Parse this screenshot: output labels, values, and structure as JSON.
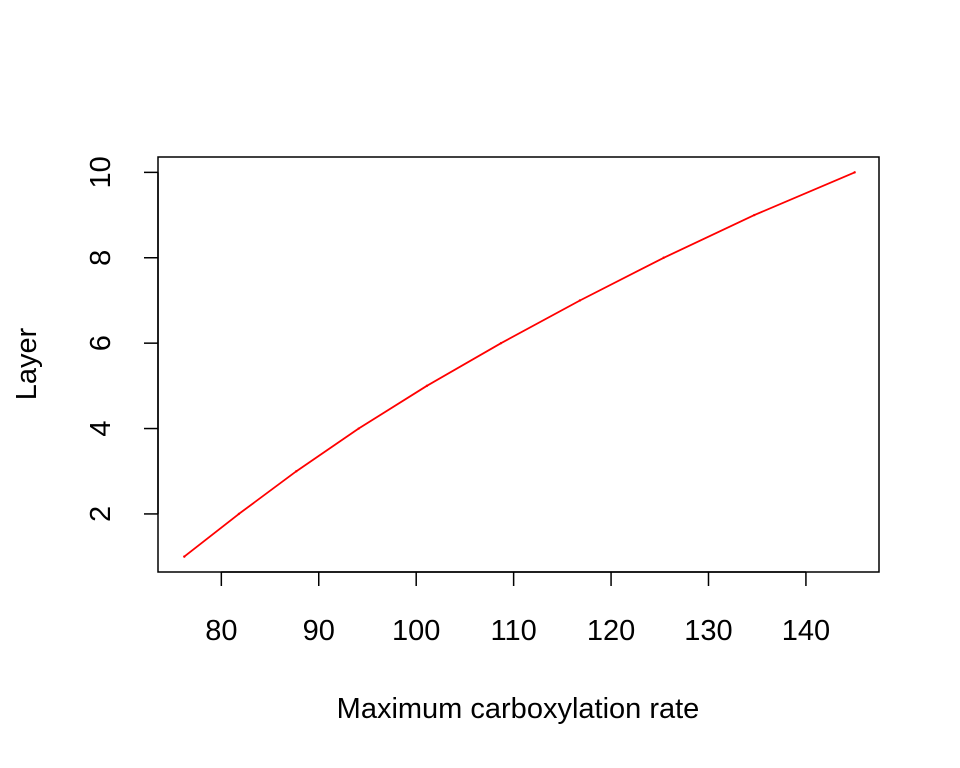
{
  "chart_data": {
    "type": "line",
    "title": "",
    "xlabel": "Maximum carboxylation rate",
    "ylabel": "Layer",
    "xlim": [
      73.5,
      147.5
    ],
    "ylim": [
      0.64,
      10.36
    ],
    "xticks": [
      80,
      90,
      100,
      110,
      120,
      130,
      140
    ],
    "yticks": [
      2,
      4,
      6,
      8,
      10
    ],
    "grid": false,
    "legend": "none",
    "series": [
      {
        "color": "#ff0000",
        "x": [
          76.2,
          81.8,
          87.7,
          94.1,
          101.1,
          108.7,
          116.8,
          125.4,
          134.7,
          145.0
        ],
        "y": [
          1,
          2,
          3,
          4,
          5,
          6,
          7,
          8,
          9,
          10
        ]
      }
    ]
  }
}
